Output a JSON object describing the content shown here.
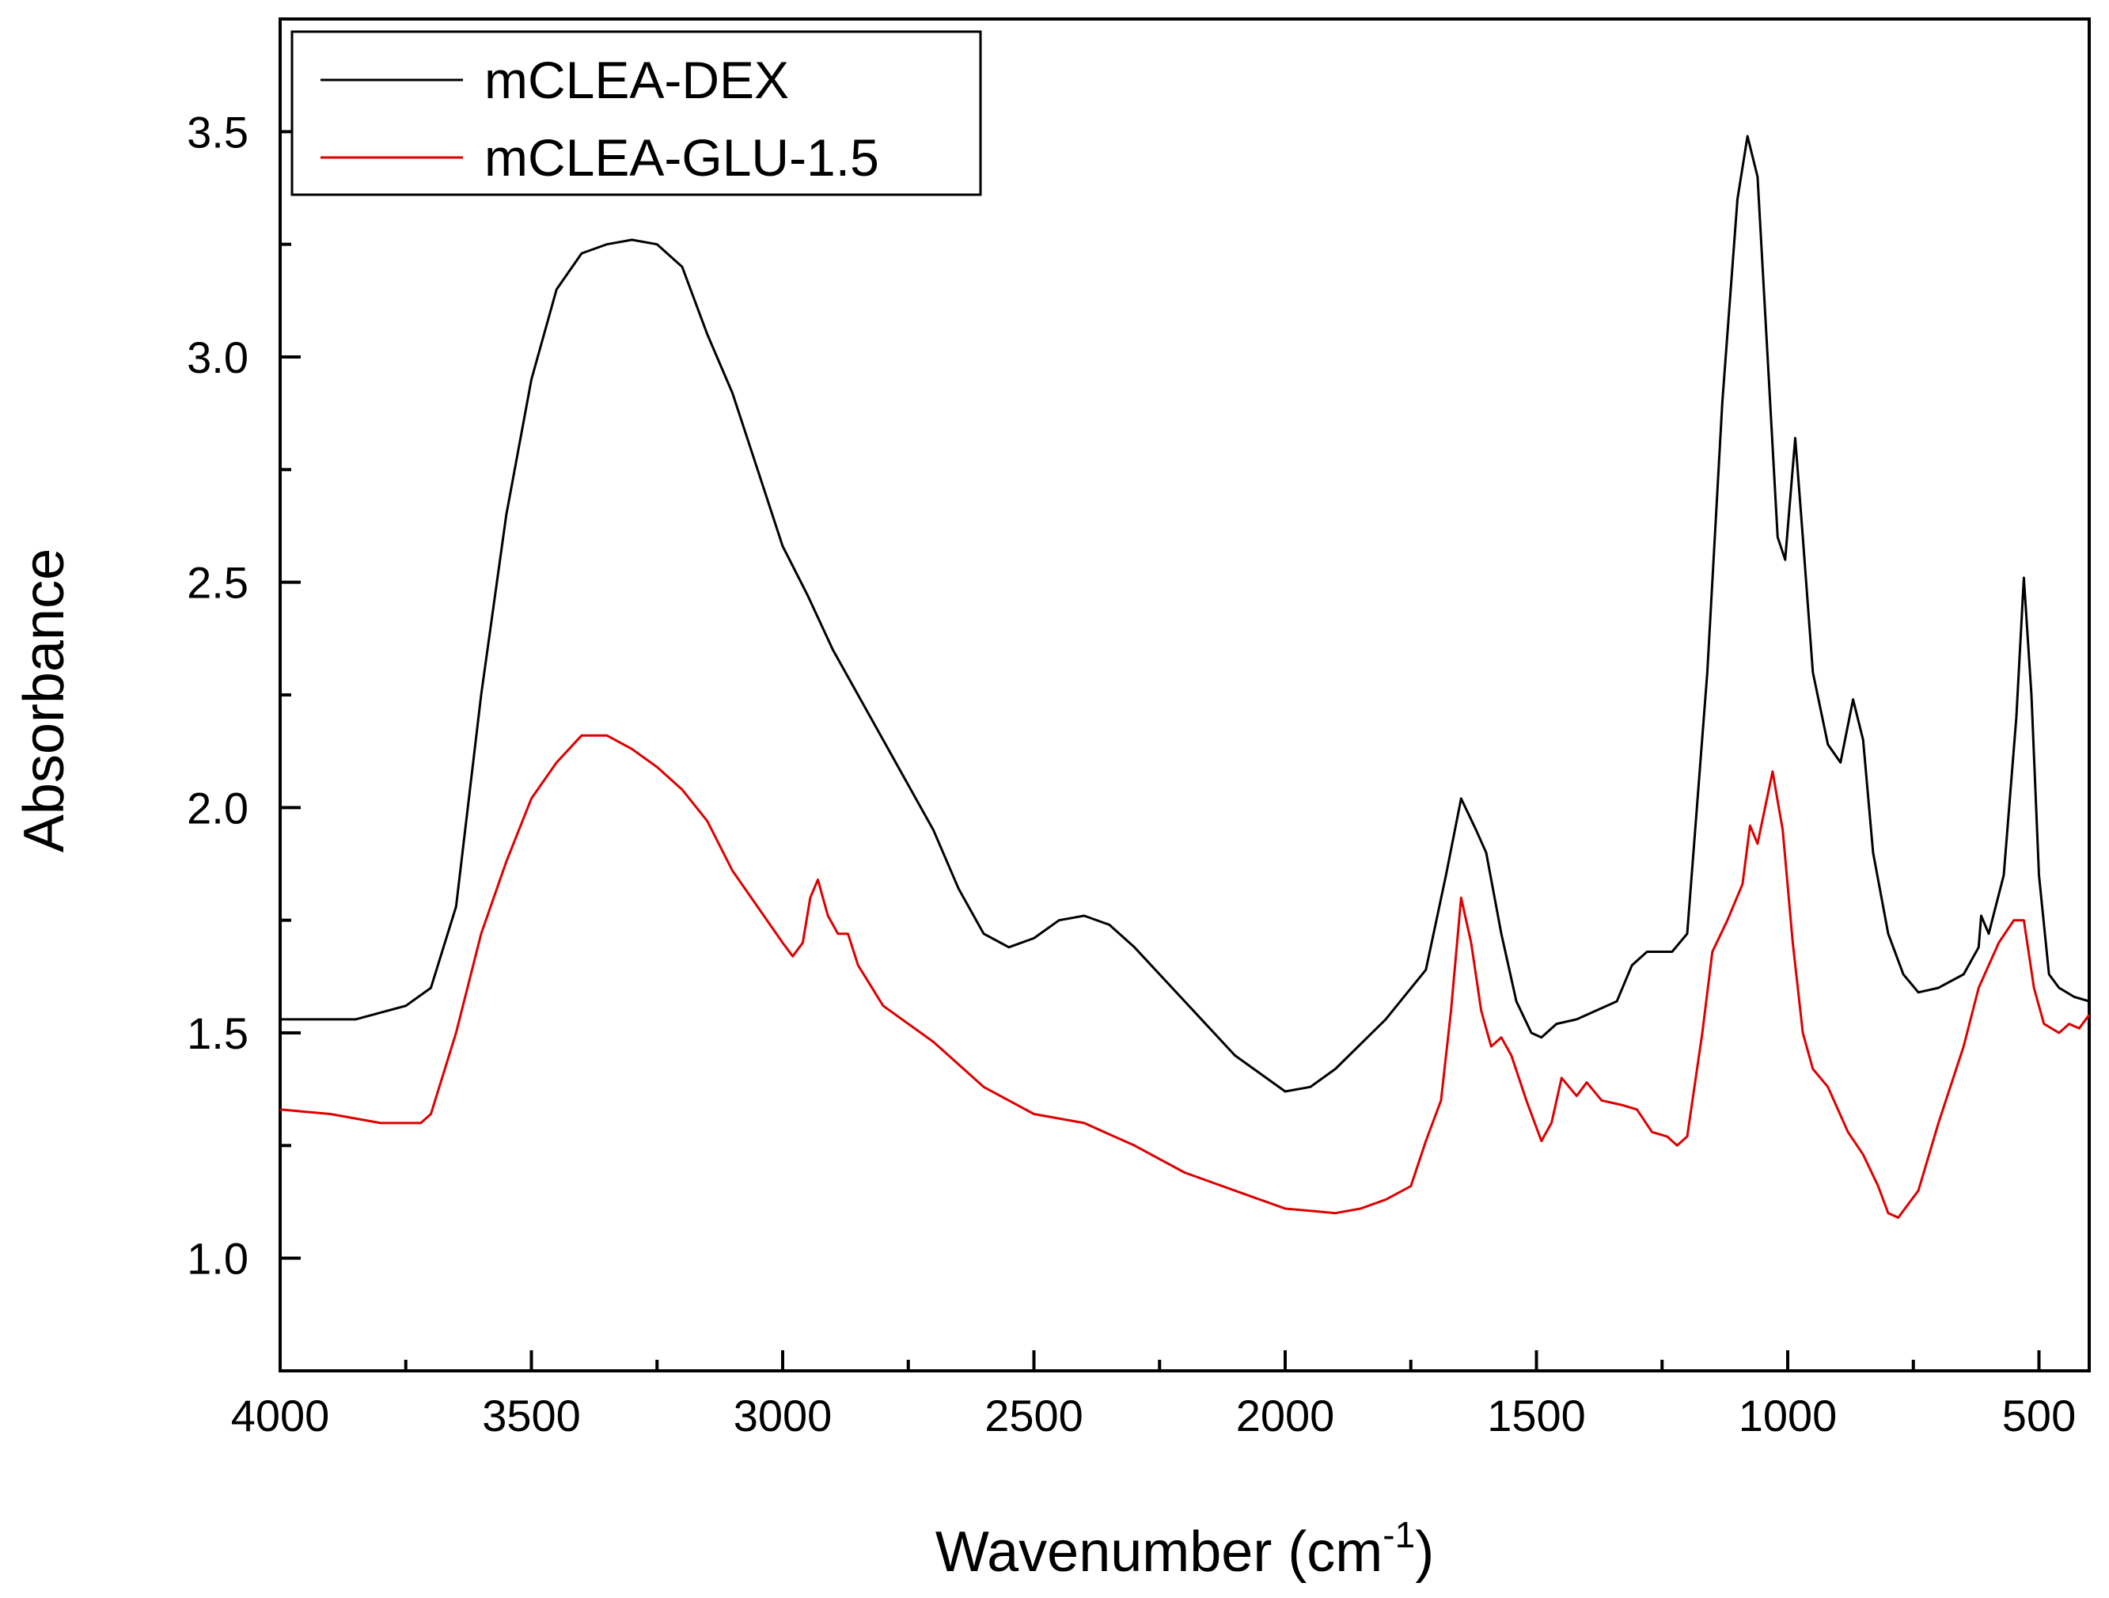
{
  "chart_data": {
    "type": "line",
    "title": "",
    "xlabel": "Wavenumber (cm",
    "xlabel_superscript": "-1",
    "xlabel_close": ")",
    "ylabel": "Absorbance",
    "xlim": [
      4000,
      400
    ],
    "ylim": [
      0.75,
      3.75
    ],
    "x_ticks": [
      4000,
      3500,
      3000,
      2500,
      2000,
      1500,
      1000,
      500
    ],
    "x_tick_labels": [
      "4000",
      "3500",
      "3000",
      "2500",
      "2000",
      "1500",
      "1000",
      "500"
    ],
    "y_ticks": [
      1.0,
      1.5,
      2.0,
      2.5,
      3.0,
      3.5
    ],
    "y_tick_labels": [
      "1.0",
      "1.5",
      "2.0",
      "2.5",
      "3.0",
      "3.5"
    ],
    "grid": false,
    "legend_position": "top-left",
    "series": [
      {
        "name": "mCLEA-DEX",
        "color": "#000000",
        "points": [
          [
            4000,
            1.53
          ],
          [
            3850,
            1.53
          ],
          [
            3750,
            1.56
          ],
          [
            3700,
            1.6
          ],
          [
            3650,
            1.78
          ],
          [
            3600,
            2.25
          ],
          [
            3550,
            2.65
          ],
          [
            3500,
            2.95
          ],
          [
            3450,
            3.15
          ],
          [
            3400,
            3.23
          ],
          [
            3350,
            3.25
          ],
          [
            3300,
            3.26
          ],
          [
            3250,
            3.25
          ],
          [
            3200,
            3.2
          ],
          [
            3150,
            3.05
          ],
          [
            3100,
            2.92
          ],
          [
            3050,
            2.75
          ],
          [
            3000,
            2.58
          ],
          [
            2950,
            2.47
          ],
          [
            2900,
            2.35
          ],
          [
            2800,
            2.15
          ],
          [
            2700,
            1.95
          ],
          [
            2650,
            1.82
          ],
          [
            2600,
            1.72
          ],
          [
            2550,
            1.69
          ],
          [
            2500,
            1.71
          ],
          [
            2450,
            1.75
          ],
          [
            2400,
            1.76
          ],
          [
            2350,
            1.74
          ],
          [
            2300,
            1.69
          ],
          [
            2200,
            1.57
          ],
          [
            2100,
            1.45
          ],
          [
            2000,
            1.37
          ],
          [
            1950,
            1.38
          ],
          [
            1900,
            1.42
          ],
          [
            1800,
            1.53
          ],
          [
            1720,
            1.64
          ],
          [
            1680,
            1.85
          ],
          [
            1650,
            2.02
          ],
          [
            1620,
            1.95
          ],
          [
            1600,
            1.9
          ],
          [
            1570,
            1.72
          ],
          [
            1540,
            1.57
          ],
          [
            1510,
            1.5
          ],
          [
            1490,
            1.49
          ],
          [
            1460,
            1.52
          ],
          [
            1420,
            1.53
          ],
          [
            1380,
            1.55
          ],
          [
            1340,
            1.57
          ],
          [
            1310,
            1.65
          ],
          [
            1280,
            1.68
          ],
          [
            1230,
            1.68
          ],
          [
            1200,
            1.72
          ],
          [
            1160,
            2.3
          ],
          [
            1130,
            2.9
          ],
          [
            1100,
            3.35
          ],
          [
            1080,
            3.49
          ],
          [
            1060,
            3.4
          ],
          [
            1040,
            3.0
          ],
          [
            1020,
            2.6
          ],
          [
            1005,
            2.55
          ],
          [
            985,
            2.82
          ],
          [
            970,
            2.6
          ],
          [
            950,
            2.3
          ],
          [
            920,
            2.14
          ],
          [
            895,
            2.1
          ],
          [
            870,
            2.24
          ],
          [
            850,
            2.15
          ],
          [
            830,
            1.9
          ],
          [
            800,
            1.72
          ],
          [
            770,
            1.63
          ],
          [
            740,
            1.59
          ],
          [
            700,
            1.6
          ],
          [
            650,
            1.63
          ],
          [
            620,
            1.69
          ],
          [
            615,
            1.76
          ],
          [
            600,
            1.72
          ],
          [
            570,
            1.85
          ],
          [
            545,
            2.2
          ],
          [
            530,
            2.51
          ],
          [
            515,
            2.25
          ],
          [
            500,
            1.85
          ],
          [
            480,
            1.63
          ],
          [
            460,
            1.6
          ],
          [
            430,
            1.58
          ],
          [
            400,
            1.57
          ]
        ]
      },
      {
        "name": "mCLEA-GLU-1.5",
        "color": "#dd0000",
        "points": [
          [
            4000,
            1.33
          ],
          [
            3900,
            1.32
          ],
          [
            3800,
            1.3
          ],
          [
            3720,
            1.3
          ],
          [
            3700,
            1.32
          ],
          [
            3650,
            1.5
          ],
          [
            3600,
            1.72
          ],
          [
            3550,
            1.88
          ],
          [
            3500,
            2.02
          ],
          [
            3450,
            2.1
          ],
          [
            3400,
            2.16
          ],
          [
            3350,
            2.16
          ],
          [
            3300,
            2.13
          ],
          [
            3250,
            2.09
          ],
          [
            3200,
            2.04
          ],
          [
            3150,
            1.97
          ],
          [
            3100,
            1.86
          ],
          [
            3050,
            1.78
          ],
          [
            3000,
            1.7
          ],
          [
            2980,
            1.67
          ],
          [
            2960,
            1.7
          ],
          [
            2945,
            1.8
          ],
          [
            2930,
            1.84
          ],
          [
            2910,
            1.76
          ],
          [
            2890,
            1.72
          ],
          [
            2870,
            1.72
          ],
          [
            2850,
            1.65
          ],
          [
            2800,
            1.56
          ],
          [
            2700,
            1.48
          ],
          [
            2600,
            1.38
          ],
          [
            2500,
            1.32
          ],
          [
            2400,
            1.3
          ],
          [
            2300,
            1.25
          ],
          [
            2200,
            1.19
          ],
          [
            2100,
            1.15
          ],
          [
            2000,
            1.11
          ],
          [
            1900,
            1.1
          ],
          [
            1850,
            1.11
          ],
          [
            1800,
            1.13
          ],
          [
            1750,
            1.16
          ],
          [
            1720,
            1.26
          ],
          [
            1690,
            1.35
          ],
          [
            1670,
            1.55
          ],
          [
            1650,
            1.8
          ],
          [
            1630,
            1.7
          ],
          [
            1610,
            1.55
          ],
          [
            1590,
            1.47
          ],
          [
            1570,
            1.49
          ],
          [
            1550,
            1.45
          ],
          [
            1520,
            1.35
          ],
          [
            1490,
            1.26
          ],
          [
            1470,
            1.3
          ],
          [
            1450,
            1.4
          ],
          [
            1420,
            1.36
          ],
          [
            1400,
            1.39
          ],
          [
            1370,
            1.35
          ],
          [
            1330,
            1.34
          ],
          [
            1300,
            1.33
          ],
          [
            1270,
            1.28
          ],
          [
            1240,
            1.27
          ],
          [
            1220,
            1.25
          ],
          [
            1200,
            1.27
          ],
          [
            1170,
            1.5
          ],
          [
            1150,
            1.68
          ],
          [
            1120,
            1.75
          ],
          [
            1090,
            1.83
          ],
          [
            1075,
            1.96
          ],
          [
            1060,
            1.92
          ],
          [
            1045,
            2.0
          ],
          [
            1030,
            2.08
          ],
          [
            1010,
            1.95
          ],
          [
            990,
            1.7
          ],
          [
            970,
            1.5
          ],
          [
            950,
            1.42
          ],
          [
            920,
            1.38
          ],
          [
            880,
            1.28
          ],
          [
            850,
            1.23
          ],
          [
            820,
            1.16
          ],
          [
            800,
            1.1
          ],
          [
            780,
            1.09
          ],
          [
            760,
            1.12
          ],
          [
            740,
            1.15
          ],
          [
            700,
            1.3
          ],
          [
            650,
            1.47
          ],
          [
            620,
            1.6
          ],
          [
            580,
            1.7
          ],
          [
            550,
            1.75
          ],
          [
            530,
            1.75
          ],
          [
            510,
            1.6
          ],
          [
            490,
            1.52
          ],
          [
            460,
            1.5
          ],
          [
            440,
            1.52
          ],
          [
            420,
            1.51
          ],
          [
            400,
            1.54
          ]
        ]
      }
    ]
  }
}
